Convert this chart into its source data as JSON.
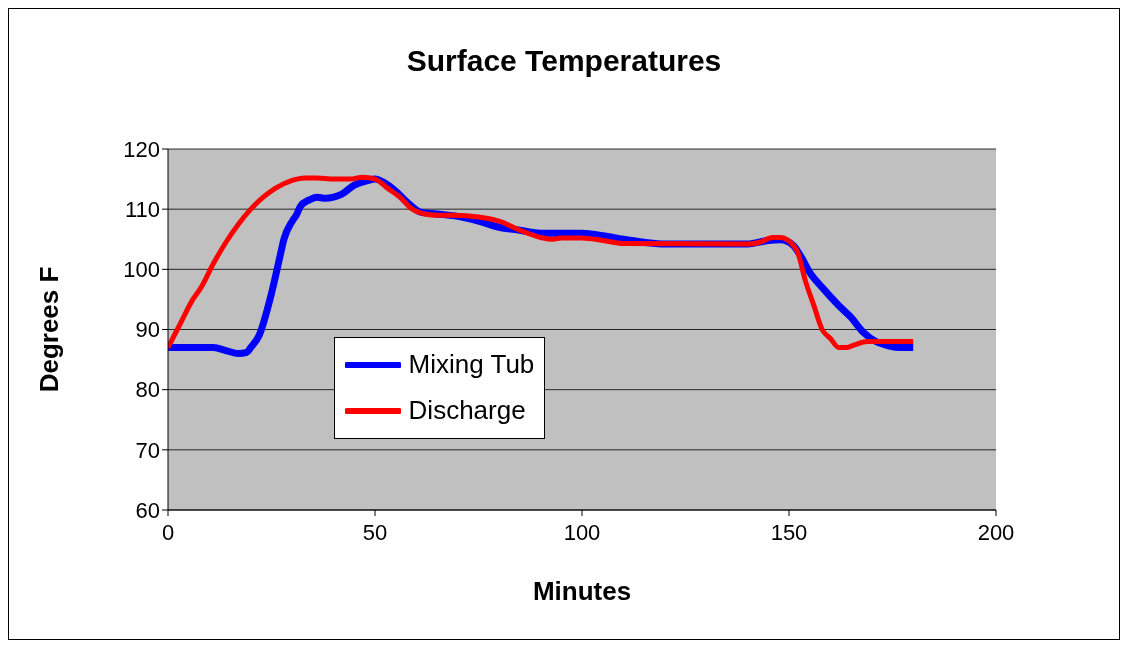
{
  "chart_data": {
    "type": "line",
    "title": "Surface Temperatures",
    "xlabel": "Minutes",
    "ylabel": "Degrees F",
    "xlim": [
      0,
      200
    ],
    "xticks": [
      0,
      50,
      100,
      150,
      200
    ],
    "ylim": [
      60,
      120
    ],
    "yticks": [
      60,
      70,
      80,
      90,
      100,
      110,
      120
    ],
    "grid": "y",
    "legend": "bottom left",
    "marker": "none",
    "line_style": "solid",
    "series": [
      {
        "name": "Mixing Tub",
        "color": "#0000ff",
        "x": [
          0,
          5,
          11,
          14,
          17,
          19,
          20,
          22,
          25,
          27,
          28,
          30,
          31,
          32,
          34,
          36,
          38,
          40,
          42,
          45,
          48,
          50,
          52,
          55,
          58,
          61,
          65,
          70,
          75,
          80,
          85,
          90,
          100,
          105,
          110,
          115,
          120,
          140,
          145,
          148,
          151,
          153,
          155,
          158,
          162,
          165,
          168,
          171,
          174,
          177,
          180
        ],
        "values": [
          87,
          87,
          87,
          86.5,
          86,
          86.2,
          87,
          89,
          96,
          102,
          105,
          108,
          109,
          110.5,
          111.5,
          112,
          111.8,
          112,
          112.5,
          114,
          114.7,
          115,
          114.5,
          113,
          111,
          109.5,
          109.2,
          108.8,
          108,
          107,
          106.5,
          106,
          106,
          105.6,
          105,
          104.5,
          104.2,
          104.2,
          104.8,
          104.9,
          104,
          102,
          99.5,
          97,
          94,
          92,
          89.5,
          88,
          87.3,
          87,
          87
        ]
      },
      {
        "name": "Discharge",
        "color": "#ff0000",
        "x": [
          0,
          3,
          6,
          8,
          11,
          14,
          17,
          20,
          23,
          26,
          30,
          33,
          36,
          40,
          44,
          47,
          50,
          53,
          56,
          59,
          62,
          65,
          69,
          75,
          80,
          85,
          90,
          93,
          95,
          100,
          105,
          110,
          140,
          143,
          146,
          148,
          151,
          152,
          154,
          156,
          158,
          160,
          162,
          164,
          166,
          169,
          175,
          180
        ],
        "values": [
          87,
          91,
          95,
          97,
          101,
          104.5,
          107.5,
          110,
          112,
          113.5,
          114.8,
          115.2,
          115.2,
          115,
          115,
          115.3,
          115,
          113.5,
          112,
          110,
          109.2,
          109,
          109,
          108.7,
          108,
          106.5,
          105.3,
          105,
          105.2,
          105.2,
          104.8,
          104.3,
          104.2,
          104.5,
          105.3,
          105.3,
          104,
          103,
          98,
          94,
          90,
          88.5,
          87,
          87,
          87.5,
          88,
          88,
          88
        ]
      }
    ]
  }
}
